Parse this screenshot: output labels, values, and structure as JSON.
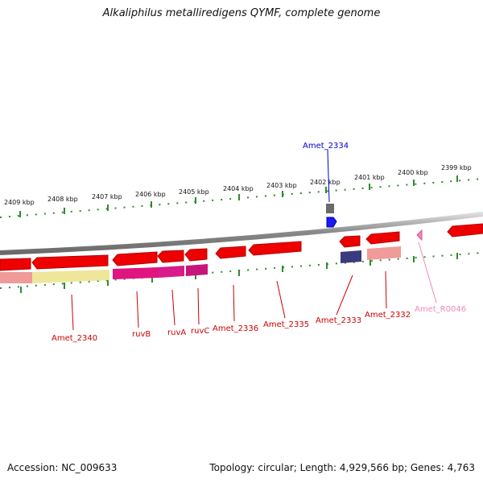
{
  "title": "Alkaliphilus metalliredigens QYMF, complete genome",
  "footer": {
    "accession": "Accession: NC_009633",
    "summary": "Topology: circular; Length: 4,929,566 bp; Genes: 4,763"
  },
  "colors": {
    "gene_red": "#ee0000",
    "gene_magenta": "#e0157f",
    "gene_navy": "#3a3a7e",
    "gene_yellow": "#eee69a",
    "gene_pink_light": "#f09a9a",
    "gene_blue": "#1a1aee",
    "gene_pink_rna": "#ee88bb",
    "tick_green": "#2e8b2e",
    "backbone_gray": "#8a8a8a",
    "label_red": "#cc0000",
    "label_blue": "#0000cc",
    "label_pink": "#ee88bb"
  },
  "scale": {
    "unit": "kbp",
    "labels": [
      "2409 kbp",
      "2408 kbp",
      "2407 kbp",
      "2406 kbp",
      "2405 kbp",
      "2404 kbp",
      "2403 kbp",
      "2402 kbp",
      "2401 kbp",
      "2400 kbp",
      "2399 kbp"
    ]
  },
  "genes": [
    {
      "name": "Amet_2340",
      "color": "red",
      "strand": "minus"
    },
    {
      "name": "ruvB",
      "color": "red",
      "strand": "minus"
    },
    {
      "name": "ruvA",
      "color": "red",
      "strand": "minus"
    },
    {
      "name": "ruvC",
      "color": "red",
      "strand": "minus"
    },
    {
      "name": "Amet_2336",
      "color": "red",
      "strand": "minus"
    },
    {
      "name": "Amet_2335",
      "color": "red",
      "strand": "minus"
    },
    {
      "name": "Amet_2334",
      "color": "blue",
      "strand": "plus"
    },
    {
      "name": "Amet_2333",
      "color": "red",
      "strand": "minus"
    },
    {
      "name": "Amet_2332",
      "color": "red",
      "strand": "minus"
    },
    {
      "name": "Amet_R0046",
      "color": "pink",
      "strand": "minus"
    }
  ]
}
